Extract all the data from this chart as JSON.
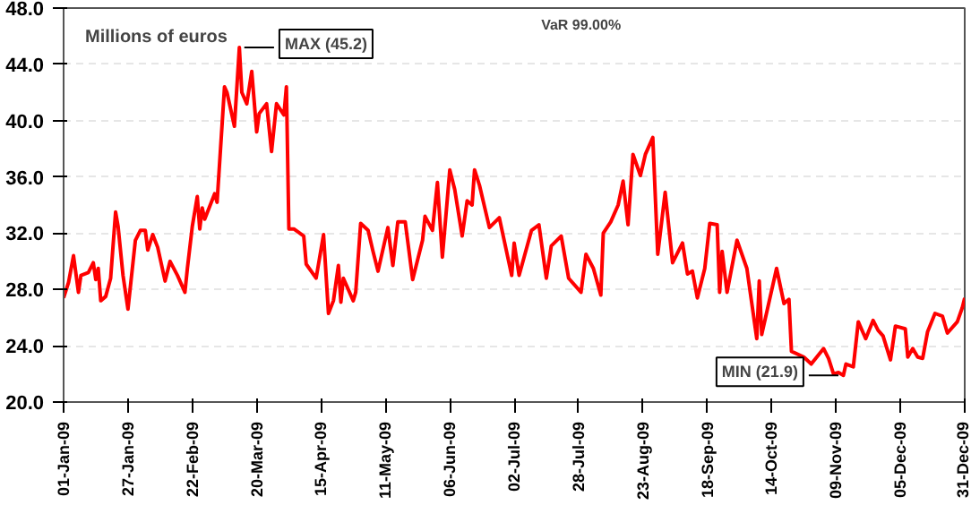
{
  "chart_data": {
    "type": "line",
    "title": "VaR 99.00%",
    "ylabel": "Millions of euros",
    "x": [
      "2009-01-01",
      "2009-01-03",
      "2009-01-05",
      "2009-01-07",
      "2009-01-08",
      "2009-01-11",
      "2009-01-13",
      "2009-01-14",
      "2009-01-15",
      "2009-01-16",
      "2009-01-18",
      "2009-01-20",
      "2009-01-22",
      "2009-01-23",
      "2009-01-25",
      "2009-01-27",
      "2009-01-30",
      "2009-02-01",
      "2009-02-03",
      "2009-02-04",
      "2009-02-06",
      "2009-02-08",
      "2009-02-11",
      "2009-02-13",
      "2009-02-16",
      "2009-02-19",
      "2009-02-20",
      "2009-02-22",
      "2009-02-24",
      "2009-02-25",
      "2009-02-26",
      "2009-02-27",
      "2009-03-03",
      "2009-03-04",
      "2009-03-07",
      "2009-03-08",
      "2009-03-11",
      "2009-03-13",
      "2009-03-14",
      "2009-03-16",
      "2009-03-18",
      "2009-03-20",
      "2009-03-21",
      "2009-03-24",
      "2009-03-26",
      "2009-03-28",
      "2009-03-31",
      "2009-04-01",
      "2009-04-02",
      "2009-04-04",
      "2009-04-08",
      "2009-04-09",
      "2009-04-13",
      "2009-04-16",
      "2009-04-18",
      "2009-04-20",
      "2009-04-22",
      "2009-04-23",
      "2009-04-24",
      "2009-04-28",
      "2009-04-29",
      "2009-05-01",
      "2009-05-04",
      "2009-05-06",
      "2009-05-08",
      "2009-05-12",
      "2009-05-14",
      "2009-05-16",
      "2009-05-19",
      "2009-05-22",
      "2009-05-26",
      "2009-05-27",
      "2009-05-30",
      "2009-06-01",
      "2009-06-03",
      "2009-06-06",
      "2009-06-08",
      "2009-06-11",
      "2009-06-13",
      "2009-06-15",
      "2009-06-16",
      "2009-06-18",
      "2009-06-22",
      "2009-06-26",
      "2009-07-01",
      "2009-07-02",
      "2009-07-04",
      "2009-07-09",
      "2009-07-12",
      "2009-07-15",
      "2009-07-17",
      "2009-07-21",
      "2009-07-24",
      "2009-07-29",
      "2009-07-31",
      "2009-08-03",
      "2009-08-06",
      "2009-08-07",
      "2009-08-10",
      "2009-08-13",
      "2009-08-15",
      "2009-08-17",
      "2009-08-19",
      "2009-08-22",
      "2009-08-24",
      "2009-08-27",
      "2009-08-29",
      "2009-09-01",
      "2009-09-04",
      "2009-09-08",
      "2009-09-10",
      "2009-09-12",
      "2009-09-14",
      "2009-09-17",
      "2009-09-19",
      "2009-09-22",
      "2009-09-23",
      "2009-09-24",
      "2009-09-26",
      "2009-09-30",
      "2009-10-04",
      "2009-10-06",
      "2009-10-08",
      "2009-10-09",
      "2009-10-10",
      "2009-10-16",
      "2009-10-19",
      "2009-10-21",
      "2009-10-22",
      "2009-10-27",
      "2009-10-30",
      "2009-11-04",
      "2009-11-06",
      "2009-11-08",
      "2009-11-10",
      "2009-11-12",
      "2009-11-13",
      "2009-11-16",
      "2009-11-18",
      "2009-11-21",
      "2009-11-24",
      "2009-11-26",
      "2009-11-28",
      "2009-12-01",
      "2009-12-03",
      "2009-12-07",
      "2009-12-08",
      "2009-12-10",
      "2009-12-12",
      "2009-12-14",
      "2009-12-16",
      "2009-12-19",
      "2009-12-22",
      "2009-12-24",
      "2009-12-28",
      "2009-12-30",
      "2009-12-31"
    ],
    "series": [
      {
        "color": "#ff0000",
        "values": [
          27.4,
          28.5,
          30.4,
          27.8,
          29.0,
          29.2,
          29.9,
          28.7,
          29.5,
          27.2,
          27.5,
          28.8,
          33.5,
          32.5,
          29.0,
          26.6,
          31.5,
          32.2,
          32.2,
          30.8,
          31.9,
          31.0,
          28.6,
          30.0,
          29.0,
          27.8,
          29.5,
          32.5,
          34.6,
          32.3,
          33.8,
          33.0,
          34.8,
          34.2,
          42.4,
          42.0,
          39.6,
          45.2,
          42.0,
          41.2,
          43.5,
          39.2,
          40.5,
          41.2,
          37.8,
          41.2,
          40.4,
          42.4,
          32.3,
          32.3,
          31.8,
          29.8,
          28.8,
          31.9,
          26.3,
          27.2,
          29.7,
          27.1,
          28.8,
          27.2,
          27.8,
          32.7,
          32.2,
          30.7,
          29.3,
          32.4,
          29.7,
          32.8,
          32.8,
          28.7,
          31.5,
          33.2,
          32.2,
          35.6,
          30.3,
          36.5,
          35.1,
          31.8,
          34.3,
          34.0,
          36.5,
          35.4,
          32.4,
          33.1,
          29.0,
          31.3,
          29.0,
          32.2,
          32.6,
          28.8,
          31.1,
          31.8,
          28.8,
          27.8,
          30.5,
          29.5,
          27.6,
          32.0,
          32.8,
          34.0,
          35.7,
          32.6,
          37.6,
          36.1,
          37.6,
          38.8,
          30.5,
          34.9,
          29.9,
          31.3,
          29.1,
          29.3,
          27.4,
          29.5,
          32.7,
          32.6,
          27.8,
          30.7,
          27.8,
          31.5,
          29.5,
          27.0,
          24.5,
          28.6,
          24.8,
          29.5,
          27.0,
          27.3,
          23.6,
          23.2,
          22.7,
          23.8,
          23.1,
          22.0,
          22.1,
          21.9,
          22.7,
          22.5,
          25.7,
          24.5,
          25.8,
          25.1,
          24.7,
          23.0,
          25.4,
          25.2,
          23.2,
          23.8,
          23.2,
          23.1,
          25.0,
          26.3,
          26.1,
          24.9,
          25.7,
          26.7,
          27.4
        ]
      }
    ],
    "annotations": [
      {
        "text": "MAX (45.2)",
        "x": "2009-03-13",
        "y": 45.2
      },
      {
        "text": "MIN (21.9)",
        "x": "2009-11-12",
        "y": 21.9
      }
    ],
    "xlim": [
      "2009-01-01",
      "2009-12-31"
    ],
    "xticks": [
      {
        "value": "2009-01-01",
        "label": "01-Jan-09"
      },
      {
        "value": "2009-01-27",
        "label": "27-Jan-09"
      },
      {
        "value": "2009-02-22",
        "label": "22-Feb-09"
      },
      {
        "value": "2009-03-20",
        "label": "20-Mar-09"
      },
      {
        "value": "2009-04-15",
        "label": "15-Apr-09"
      },
      {
        "value": "2009-05-11",
        "label": "11-May-09"
      },
      {
        "value": "2009-06-06",
        "label": "06-Jun-09"
      },
      {
        "value": "2009-07-02",
        "label": "02-Jul-09"
      },
      {
        "value": "2009-07-28",
        "label": "28-Jul-09"
      },
      {
        "value": "2009-08-23",
        "label": "23-Aug-09"
      },
      {
        "value": "2009-09-18",
        "label": "18-Sep-09"
      },
      {
        "value": "2009-10-14",
        "label": "14-Oct-09"
      },
      {
        "value": "2009-11-09",
        "label": "09-Nov-09"
      },
      {
        "value": "2009-12-05",
        "label": "05-Dec-09"
      },
      {
        "value": "2009-12-31",
        "label": "31-Dec-09"
      }
    ],
    "ylim": [
      20.0,
      48.0
    ],
    "yticks": [
      {
        "value": 20,
        "label": "20.0"
      },
      {
        "value": 24,
        "label": "24.0"
      },
      {
        "value": 28,
        "label": "28.0"
      },
      {
        "value": 32,
        "label": "32.0"
      },
      {
        "value": 36,
        "label": "36.0"
      },
      {
        "value": 40,
        "label": "40.0"
      },
      {
        "value": 44,
        "label": "44.0"
      },
      {
        "value": 48,
        "label": "48.0"
      }
    ],
    "grid": "y",
    "line_style": "solid",
    "marker": "none"
  }
}
